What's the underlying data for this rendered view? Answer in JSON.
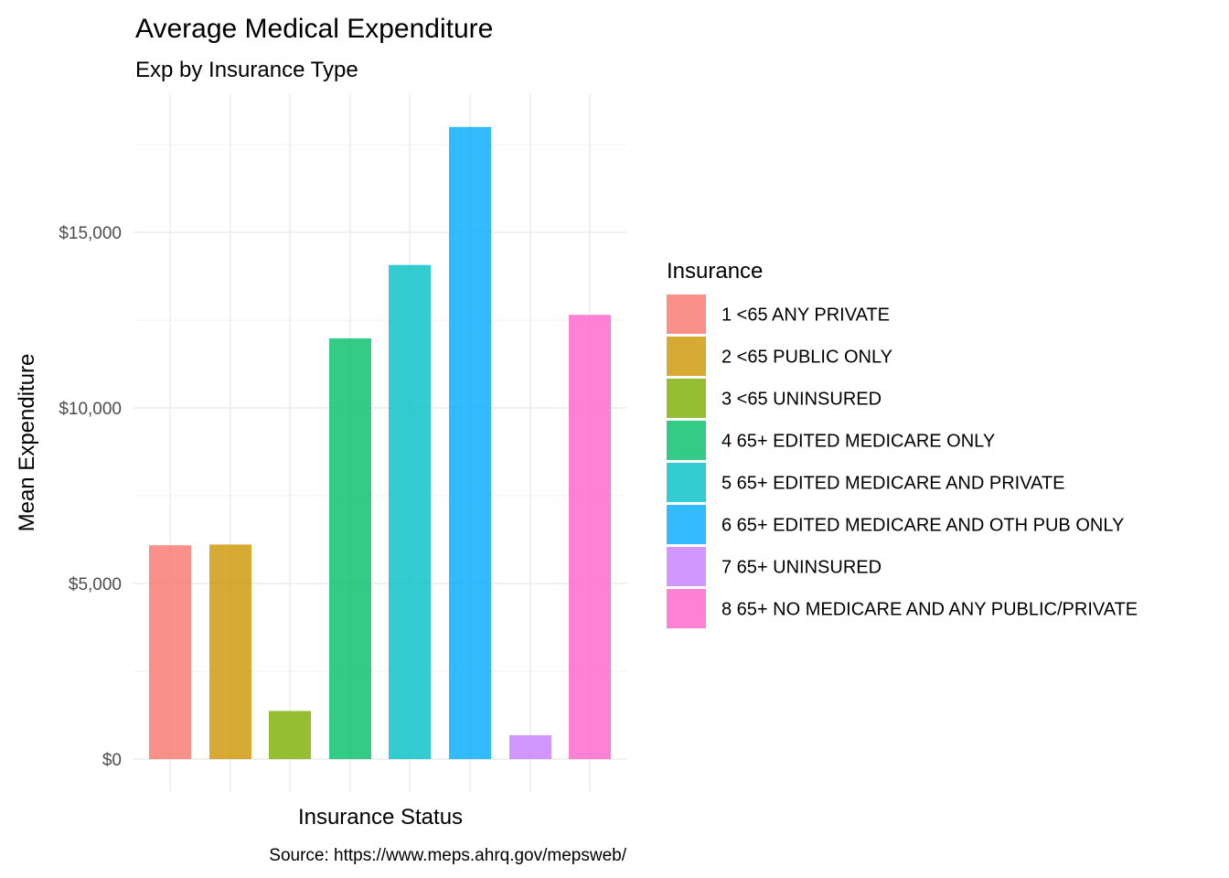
{
  "chart_data": {
    "type": "bar",
    "title": "Average Medical Expenditure",
    "subtitle": "Exp by Insurance Type",
    "xlabel": "Insurance Status",
    "ylabel": "Mean Expenditure",
    "caption": "Source: https://www.meps.ahrq.gov/mepsweb/",
    "legend_title": "Insurance",
    "legend_position": "right",
    "grid": true,
    "x_tick_labels_shown": false,
    "ylim": [
      0,
      18000
    ],
    "y_ticks": [
      0,
      5000,
      10000,
      15000
    ],
    "y_tick_labels": [
      "$0",
      "$5,000",
      "$10,000",
      "$15,000"
    ],
    "categories": [
      "1 <65 ANY PRIVATE",
      "2 <65 PUBLIC ONLY",
      "3 <65 UNINSURED",
      "4 65+ EDITED MEDICARE ONLY",
      "5 65+ EDITED MEDICARE AND PRIVATE",
      "6 65+ EDITED MEDICARE AND OTH PUB ONLY",
      "7 65+ UNINSURED",
      "8 65+ NO MEDICARE AND ANY PUBLIC/PRIVATE"
    ],
    "values": [
      6090,
      6110,
      1370,
      11980,
      14070,
      18000,
      680,
      12650
    ],
    "colors": [
      "#F8766D",
      "#CD9600",
      "#7CAE00",
      "#00BE67",
      "#00BFC4",
      "#00A9FF",
      "#C77CFF",
      "#FF61CC"
    ],
    "bar_opacity": 0.8
  }
}
